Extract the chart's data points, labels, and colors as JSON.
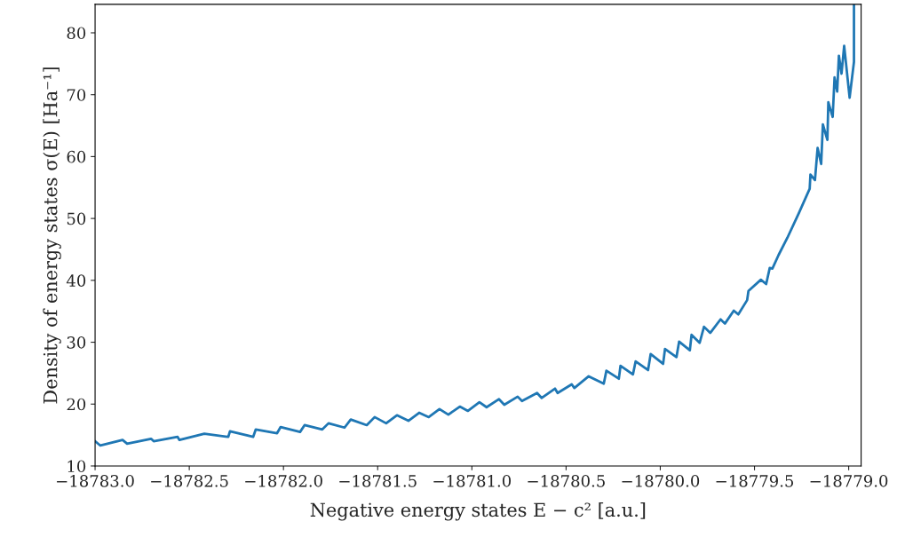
{
  "chart_data": {
    "type": "line",
    "xlabel": "Negative energy states E − c² [a.u.]",
    "ylabel": "Density of energy states σ(E) [Ha⁻¹]",
    "xlim": [
      -18783.0,
      -18778.934
    ],
    "ylim": [
      10,
      84.6
    ],
    "xticks": [
      {
        "value": -18783.0,
        "label": "−18783.0"
      },
      {
        "value": -18782.5,
        "label": "−18782.5"
      },
      {
        "value": -18782.0,
        "label": "−18782.0"
      },
      {
        "value": -18781.5,
        "label": "−18781.5"
      },
      {
        "value": -18781.0,
        "label": "−18781.0"
      },
      {
        "value": -18780.5,
        "label": "−18780.5"
      },
      {
        "value": -18780.0,
        "label": "−18780.0"
      },
      {
        "value": -18779.5,
        "label": "−18779.5"
      },
      {
        "value": -18779.0,
        "label": "−18779.0"
      }
    ],
    "yticks": [
      10,
      20,
      30,
      40,
      50,
      60,
      70,
      80
    ],
    "grid": false,
    "legend": false,
    "marker": "none",
    "line_style": "solid",
    "series": [
      {
        "color": "#1f77b4",
        "x": [
          -18783.0,
          -18782.972,
          -18782.854,
          -18782.83,
          -18782.703,
          -18782.689,
          -18782.562,
          -18782.552,
          -18782.42,
          -18782.293,
          -18782.284,
          -18782.161,
          -18782.147,
          -18782.034,
          -18782.015,
          -18781.912,
          -18781.888,
          -18781.794,
          -18781.761,
          -18781.676,
          -18781.643,
          -18781.558,
          -18781.516,
          -18781.455,
          -18781.398,
          -18781.337,
          -18781.28,
          -18781.229,
          -18781.172,
          -18781.125,
          -18781.064,
          -18781.021,
          -18780.96,
          -18780.922,
          -18780.856,
          -18780.828,
          -18780.757,
          -18780.734,
          -18780.654,
          -18780.63,
          -18780.559,
          -18780.545,
          -18780.47,
          -18780.456,
          -18780.38,
          -18780.3,
          -18780.286,
          -18780.22,
          -18780.211,
          -18780.145,
          -18780.131,
          -18780.065,
          -18780.051,
          -18779.985,
          -18779.975,
          -18779.914,
          -18779.9,
          -18779.843,
          -18779.834,
          -18779.791,
          -18779.768,
          -18779.735,
          -18779.68,
          -18779.657,
          -18779.61,
          -18779.586,
          -18779.539,
          -18779.532,
          -18779.466,
          -18779.438,
          -18779.419,
          -18779.405,
          -18779.372,
          -18779.325,
          -18779.264,
          -18779.207,
          -18779.203,
          -18779.179,
          -18779.165,
          -18779.146,
          -18779.137,
          -18779.113,
          -18779.108,
          -18779.085,
          -18779.075,
          -18779.061,
          -18779.052,
          -18779.038,
          -18779.024,
          -18778.995,
          -18778.972,
          -18778.972
        ],
        "values": [
          14.0,
          13.3,
          14.2,
          13.6,
          14.4,
          14.0,
          14.7,
          14.2,
          15.2,
          14.7,
          15.6,
          14.7,
          15.9,
          15.3,
          16.3,
          15.5,
          16.6,
          15.9,
          16.9,
          16.2,
          17.5,
          16.6,
          17.9,
          16.9,
          18.2,
          17.3,
          18.6,
          17.9,
          19.2,
          18.3,
          19.6,
          18.9,
          20.3,
          19.5,
          20.8,
          19.9,
          21.2,
          20.5,
          21.8,
          21.0,
          22.5,
          21.8,
          23.2,
          22.6,
          24.5,
          23.3,
          25.4,
          24.1,
          26.2,
          24.8,
          26.9,
          25.5,
          28.1,
          26.5,
          28.9,
          27.6,
          30.1,
          28.7,
          31.2,
          29.9,
          32.5,
          31.5,
          33.7,
          33.0,
          35.1,
          34.5,
          36.8,
          38.3,
          40.1,
          39.4,
          42.0,
          41.9,
          44.1,
          46.9,
          50.9,
          54.8,
          57.1,
          56.2,
          61.4,
          58.8,
          65.2,
          62.7,
          68.8,
          66.4,
          72.8,
          70.5,
          76.3,
          73.4,
          77.9,
          69.5,
          75.3,
          84.5
        ]
      }
    ]
  }
}
